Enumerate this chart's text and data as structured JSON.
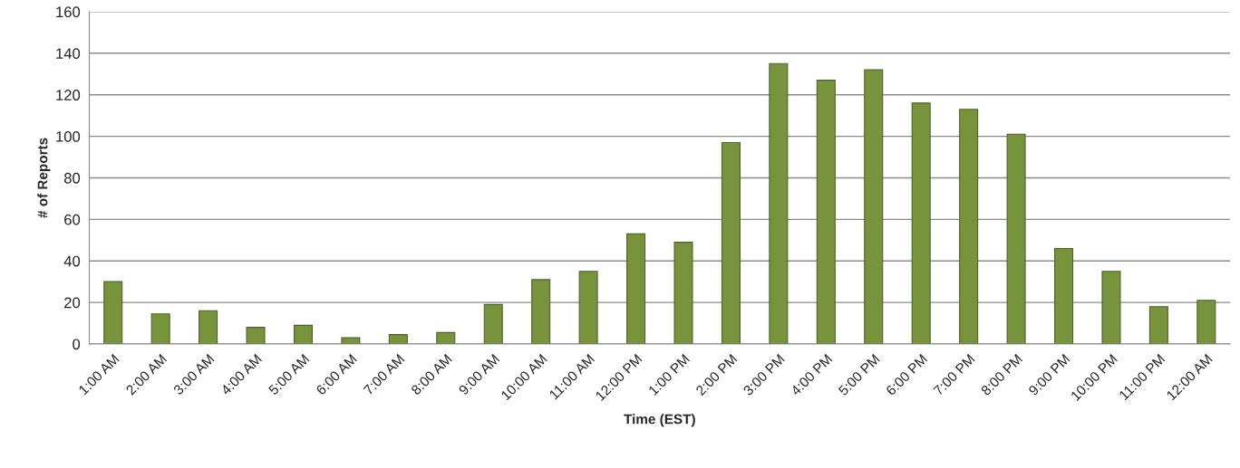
{
  "chart_data": {
    "type": "bar",
    "xlabel": "Time (EST)",
    "ylabel": "# of Reports",
    "categories": [
      "1:00 AM",
      "2:00 AM",
      "3:00 AM",
      "4:00 AM",
      "5:00 AM",
      "6:00 AM",
      "7:00 AM",
      "8:00 AM",
      "9:00 AM",
      "10:00 AM",
      "11:00 AM",
      "12:00 PM",
      "1:00 PM",
      "2:00 PM",
      "3:00 PM",
      "4:00 PM",
      "5:00 PM",
      "6:00 PM",
      "7:00 PM",
      "8:00 PM",
      "9:00 PM",
      "10:00 PM",
      "11:00 PM",
      "12:00 AM"
    ],
    "values": [
      30,
      14.5,
      16,
      8,
      9,
      3,
      4.5,
      5.5,
      19,
      31,
      35,
      53,
      49,
      97,
      135,
      127,
      132,
      116,
      113,
      101,
      46,
      35,
      18,
      21
    ],
    "color": "#77933c",
    "ylim": [
      0,
      160
    ],
    "yticks": [
      0,
      20,
      40,
      60,
      80,
      100,
      120,
      140,
      160
    ],
    "grid": "y",
    "legend": false
  }
}
